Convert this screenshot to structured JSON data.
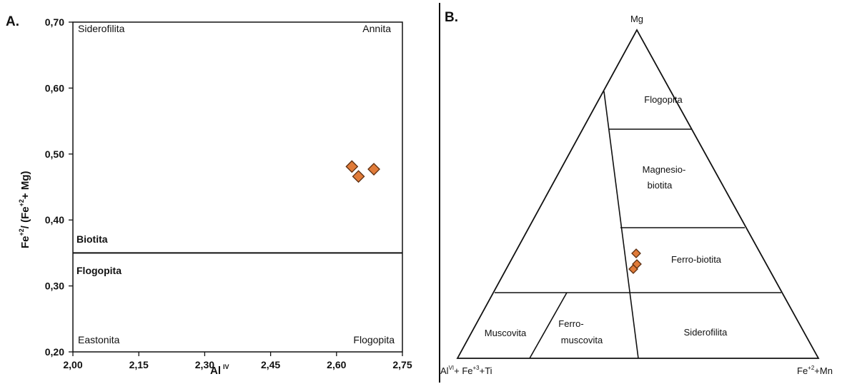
{
  "chart_data": [
    {
      "type": "scatter",
      "panel_label": "A.",
      "xlim": [
        2.0,
        2.75
      ],
      "ylim": [
        0.2,
        0.7
      ],
      "x_ticks": [
        "2,00",
        "2,15",
        "2,30",
        "2,45",
        "2,60",
        "2,75"
      ],
      "y_ticks": [
        "0,20",
        "0,30",
        "0,40",
        "0,50",
        "0,60",
        "0,70"
      ],
      "xlabel": {
        "base": "Al",
        "sup": "IV"
      },
      "ylabel": {
        "p1": "Fe",
        "s1": "+2",
        "p2": "/ (Fe",
        "s2": "+2",
        "p3": "+ Mg)"
      },
      "divider_y": 0.35,
      "corner_labels": {
        "top_left": "Siderofilita",
        "top_right": "Annita",
        "bottom_left": "Eastonita",
        "bottom_right": "Flogopita"
      },
      "field_labels": {
        "upper": "Biotita",
        "lower": "Flogopita"
      },
      "marker": {
        "shape": "diamond",
        "fill": "#E07B39",
        "stroke": "#5a2d10"
      },
      "points": [
        {
          "x": 2.635,
          "y": 0.481
        },
        {
          "x": 2.65,
          "y": 0.466
        },
        {
          "x": 2.685,
          "y": 0.477
        }
      ]
    },
    {
      "type": "ternary",
      "panel_label": "B.",
      "vertices": {
        "top": "Mg",
        "left": {
          "p1": "Al",
          "s1": "VI",
          "p2": "+ Fe",
          "s2": "+3",
          "p3": "+Ti"
        },
        "right": {
          "p1": "Fe",
          "s1": "+2",
          "p2": "+Mn"
        }
      },
      "regions": {
        "flogopita": "Flogopita",
        "magnesio_biotita": [
          "Magnesio-",
          "biotita"
        ],
        "ferro_biotita": "Ferro-biotita",
        "muscovita": "Muscovita",
        "ferro_muscovita": [
          "Ferro-",
          "muscovita"
        ],
        "siderofilita": "Siderofilita"
      },
      "marker": {
        "shape": "diamond",
        "fill": "#E07B39",
        "stroke": "#5a2d10"
      },
      "points": [
        {
          "note": "upper"
        },
        {
          "note": "middle"
        },
        {
          "note": "lower"
        }
      ]
    }
  ]
}
